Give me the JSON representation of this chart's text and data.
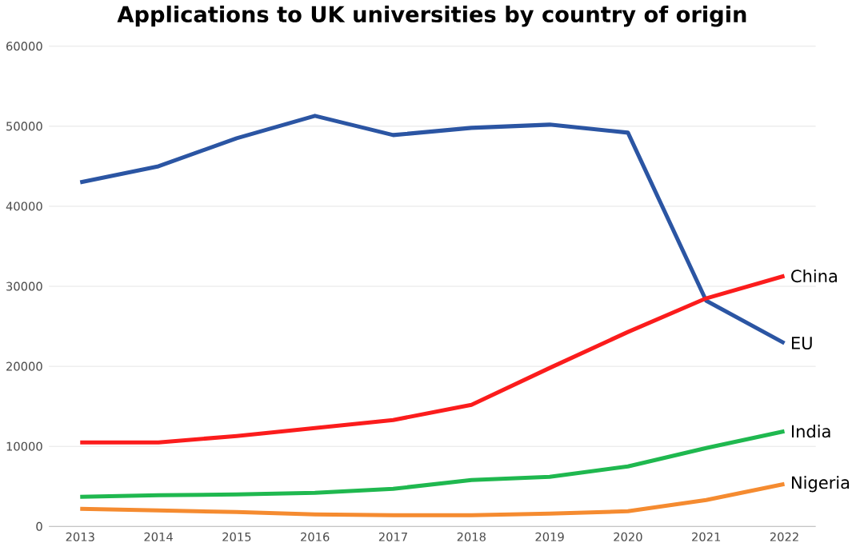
{
  "chart_data": {
    "type": "line",
    "title": "Applications to UK universities by country of origin",
    "categories": [
      "2013",
      "2014",
      "2015",
      "2016",
      "2017",
      "2018",
      "2019",
      "2020",
      "2021",
      "2022"
    ],
    "series": [
      {
        "name": "EU",
        "color": "#2b55a3",
        "values": [
          43000,
          45000,
          48500,
          51300,
          48900,
          49800,
          50200,
          49200,
          28200,
          22900
        ]
      },
      {
        "name": "China",
        "color": "#fb1c1c",
        "values": [
          10500,
          10500,
          11300,
          12300,
          13300,
          15200,
          19800,
          24300,
          28500,
          31300
        ]
      },
      {
        "name": "India",
        "color": "#1fb84f",
        "values": [
          3700,
          3900,
          4000,
          4200,
          4700,
          5800,
          6200,
          7500,
          9800,
          11900
        ]
      },
      {
        "name": "Nigeria",
        "color": "#f58b30",
        "values": [
          2200,
          2000,
          1800,
          1500,
          1400,
          1400,
          1600,
          1900,
          3300,
          5300
        ]
      }
    ],
    "ylim": [
      0,
      60000
    ],
    "yticks": [
      0,
      10000,
      20000,
      30000,
      40000,
      50000,
      60000
    ],
    "grid": "y",
    "legend": false,
    "marker": "none",
    "line_style": "solid"
  }
}
